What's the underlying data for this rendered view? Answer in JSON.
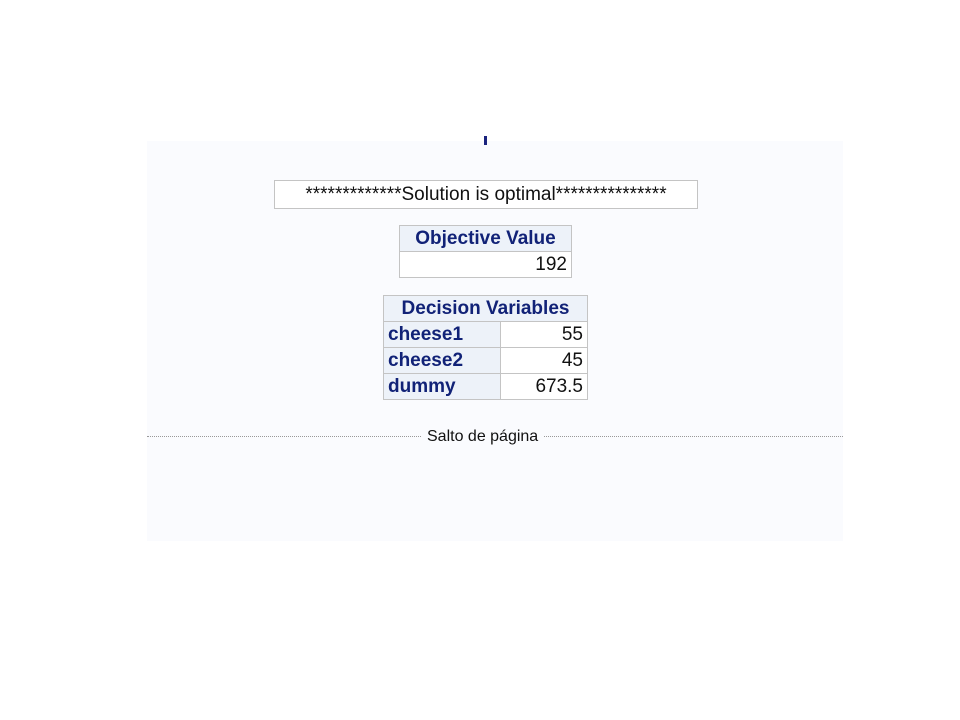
{
  "solution_status": "*************Solution is optimal***************",
  "objective": {
    "header": "Objective Value",
    "value": "192"
  },
  "decision": {
    "header": "Decision Variables",
    "rows": [
      {
        "name": "cheese1",
        "value": "55"
      },
      {
        "name": "cheese2",
        "value": "45"
      },
      {
        "name": "dummy",
        "value": "673.5"
      }
    ]
  },
  "page_break": "Salto de página",
  "colors": {
    "header_text": "#112277",
    "header_bg": "#edf2f9",
    "panel_bg": "#fafbfe"
  }
}
